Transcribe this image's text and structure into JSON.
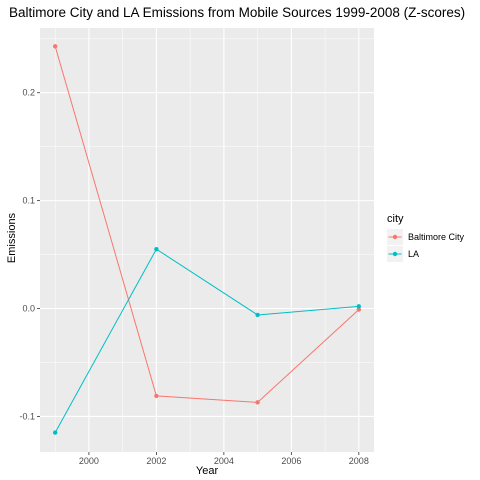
{
  "chart_data": {
    "type": "line",
    "title": "Baltimore City and LA Emissions from Mobile Sources 1999-2008 (Z-scores)",
    "xlabel": "Year",
    "ylabel": "Emissions",
    "x": [
      1999,
      2002,
      2005,
      2008
    ],
    "xlim": [
      1998.55,
      2008.45
    ],
    "ylim": [
      -0.133,
      0.26
    ],
    "xticks": [
      2000,
      2002,
      2004,
      2006,
      2008
    ],
    "xtick_labels": [
      "2000",
      "2002",
      "2004",
      "2006",
      "2008"
    ],
    "yticks": [
      -0.1,
      0.0,
      0.1,
      0.2
    ],
    "ytick_labels": [
      "-0.1",
      "0.0",
      "0.1",
      "0.2"
    ],
    "grid": true,
    "legend": {
      "title": "city",
      "position": "right"
    },
    "series": [
      {
        "name": "Baltimore City",
        "color": "#F8766D",
        "values": [
          0.243,
          -0.081,
          -0.087,
          -0.001
        ]
      },
      {
        "name": "LA",
        "color": "#00BFC4",
        "values": [
          -0.115,
          0.055,
          -0.006,
          0.002
        ]
      }
    ]
  }
}
